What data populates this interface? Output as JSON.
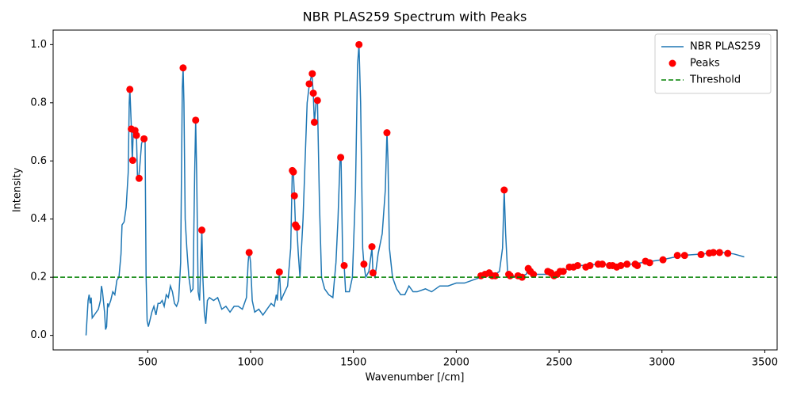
{
  "chart_data": {
    "type": "line",
    "title": "NBR PLAS259 Spectrum with Peaks",
    "xlabel": "Wavenumber [/cm]",
    "ylabel": "Intensity",
    "xlim": [
      40,
      3560
    ],
    "ylim": [
      -0.05,
      1.05
    ],
    "xticks": [
      500,
      1000,
      1500,
      2000,
      2500,
      3000,
      3500
    ],
    "yticks": [
      {
        "value": 0,
        "label": "0.0"
      },
      0.2,
      0.4,
      0.6,
      0.8,
      {
        "value": 1,
        "label": "1.0"
      }
    ],
    "legend": "upper right",
    "series": [
      {
        "name": "NBR PLAS259",
        "type": "line",
        "color": "#1f77b4",
        "x": [
          200,
          205,
          210,
          215,
          220,
          225,
          230,
          240,
          250,
          260,
          270,
          275,
          280,
          290,
          295,
          300,
          305,
          310,
          320,
          330,
          340,
          350,
          360,
          370,
          375,
          385,
          395,
          400,
          405,
          410,
          413,
          420,
          425,
          430,
          438,
          445,
          450,
          455,
          460,
          470,
          480,
          487,
          492,
          497,
          503,
          510,
          520,
          530,
          540,
          550,
          560,
          570,
          580,
          590,
          600,
          610,
          620,
          630,
          640,
          650,
          660,
          668,
          672,
          676,
          682,
          690,
          700,
          710,
          720,
          728,
          733,
          738,
          745,
          752,
          758,
          763,
          768,
          775,
          782,
          790,
          800,
          820,
          840,
          860,
          880,
          900,
          920,
          940,
          960,
          980,
          988,
          993,
          1000,
          1008,
          1020,
          1040,
          1060,
          1080,
          1100,
          1115,
          1125,
          1130,
          1140,
          1148,
          1160,
          1180,
          1195,
          1203,
          1208,
          1213,
          1218,
          1225,
          1232,
          1240,
          1255,
          1265,
          1275,
          1285,
          1298,
          1305,
          1310,
          1318,
          1325,
          1335,
          1345,
          1360,
          1380,
          1400,
          1415,
          1425,
          1435,
          1440,
          1448,
          1455,
          1462,
          1480,
          1495,
          1510,
          1520,
          1527,
          1535,
          1545,
          1551,
          1560,
          1575,
          1590,
          1595,
          1605,
          1620,
          1640,
          1655,
          1663,
          1668,
          1675,
          1690,
          1710,
          1730,
          1750,
          1770,
          1790,
          1810,
          1850,
          1880,
          1920,
          1960,
          2000,
          2040,
          2080,
          2120,
          2160,
          2190,
          2210,
          2225,
          2233,
          2240,
          2250,
          2300,
          2340,
          2350,
          2370,
          2400,
          2450,
          2500,
          2550,
          2600,
          2700,
          2800,
          2900,
          3000,
          3100,
          3200,
          3250,
          3300,
          3350,
          3400
        ],
        "values": [
          0.0,
          0.06,
          0.12,
          0.14,
          0.11,
          0.13,
          0.06,
          0.07,
          0.08,
          0.09,
          0.12,
          0.17,
          0.15,
          0.08,
          0.02,
          0.03,
          0.11,
          0.1,
          0.12,
          0.15,
          0.14,
          0.19,
          0.2,
          0.28,
          0.38,
          0.39,
          0.44,
          0.5,
          0.56,
          0.8,
          0.85,
          0.72,
          0.6,
          0.71,
          0.7,
          0.69,
          0.55,
          0.54,
          0.57,
          0.66,
          0.68,
          0.68,
          0.2,
          0.05,
          0.03,
          0.05,
          0.08,
          0.1,
          0.07,
          0.11,
          0.11,
          0.12,
          0.1,
          0.14,
          0.13,
          0.17,
          0.15,
          0.11,
          0.1,
          0.12,
          0.25,
          0.85,
          0.92,
          0.8,
          0.4,
          0.3,
          0.2,
          0.15,
          0.16,
          0.55,
          0.74,
          0.55,
          0.15,
          0.12,
          0.25,
          0.36,
          0.2,
          0.08,
          0.04,
          0.12,
          0.13,
          0.12,
          0.13,
          0.09,
          0.1,
          0.08,
          0.1,
          0.1,
          0.09,
          0.13,
          0.25,
          0.29,
          0.25,
          0.12,
          0.08,
          0.09,
          0.07,
          0.09,
          0.11,
          0.1,
          0.14,
          0.12,
          0.22,
          0.12,
          0.14,
          0.17,
          0.3,
          0.57,
          0.56,
          0.48,
          0.38,
          0.37,
          0.28,
          0.2,
          0.4,
          0.6,
          0.8,
          0.86,
          0.9,
          0.83,
          0.73,
          0.8,
          0.81,
          0.45,
          0.2,
          0.16,
          0.14,
          0.13,
          0.25,
          0.4,
          0.61,
          0.6,
          0.25,
          0.24,
          0.15,
          0.15,
          0.2,
          0.5,
          0.93,
          1.0,
          0.8,
          0.3,
          0.245,
          0.2,
          0.22,
          0.3,
          0.215,
          0.2,
          0.28,
          0.35,
          0.5,
          0.7,
          0.6,
          0.3,
          0.2,
          0.16,
          0.14,
          0.14,
          0.17,
          0.15,
          0.15,
          0.16,
          0.15,
          0.17,
          0.17,
          0.18,
          0.18,
          0.19,
          0.2,
          0.21,
          0.21,
          0.22,
          0.3,
          0.5,
          0.35,
          0.21,
          0.2,
          0.21,
          0.23,
          0.21,
          0.21,
          0.21,
          0.22,
          0.23,
          0.24,
          0.245,
          0.24,
          0.25,
          0.26,
          0.275,
          0.28,
          0.285,
          0.285,
          0.28,
          0.27
        ]
      },
      {
        "name": "Peaks",
        "type": "scatter",
        "color": "red",
        "x": [
          413,
          420,
          427,
          438,
          445,
          458,
          482,
          672,
          733,
          763,
          993,
          1140,
          1203,
          1208,
          1213,
          1218,
          1225,
          1285,
          1300,
          1305,
          1310,
          1325,
          1438,
          1455,
          1527,
          1551,
          1590,
          1595,
          1663,
          2120,
          2140,
          2160,
          2175,
          2190,
          2233,
          2255,
          2262,
          2300,
          2320,
          2350,
          2360,
          2375,
          2445,
          2460,
          2475,
          2490,
          2505,
          2520,
          2550,
          2570,
          2590,
          2630,
          2650,
          2690,
          2710,
          2745,
          2760,
          2780,
          2800,
          2830,
          2870,
          2880,
          2920,
          2940,
          3005,
          3075,
          3110,
          3190,
          3230,
          3250,
          3280,
          3320
        ],
        "values": [
          0.846,
          0.71,
          0.602,
          0.705,
          0.688,
          0.54,
          0.676,
          0.92,
          0.74,
          0.362,
          0.285,
          0.218,
          0.567,
          0.562,
          0.48,
          0.38,
          0.372,
          0.865,
          0.9,
          0.833,
          0.733,
          0.808,
          0.612,
          0.24,
          1.0,
          0.245,
          0.305,
          0.215,
          0.697,
          0.205,
          0.21,
          0.215,
          0.205,
          0.205,
          0.5,
          0.21,
          0.205,
          0.205,
          0.2,
          0.23,
          0.22,
          0.21,
          0.22,
          0.215,
          0.205,
          0.21,
          0.22,
          0.22,
          0.235,
          0.235,
          0.24,
          0.235,
          0.24,
          0.245,
          0.245,
          0.24,
          0.24,
          0.235,
          0.24,
          0.245,
          0.245,
          0.24,
          0.255,
          0.25,
          0.26,
          0.275,
          0.275,
          0.278,
          0.283,
          0.285,
          0.285,
          0.282
        ]
      }
    ],
    "threshold": {
      "name": "Threshold",
      "value": 0.2,
      "color": "green"
    }
  }
}
